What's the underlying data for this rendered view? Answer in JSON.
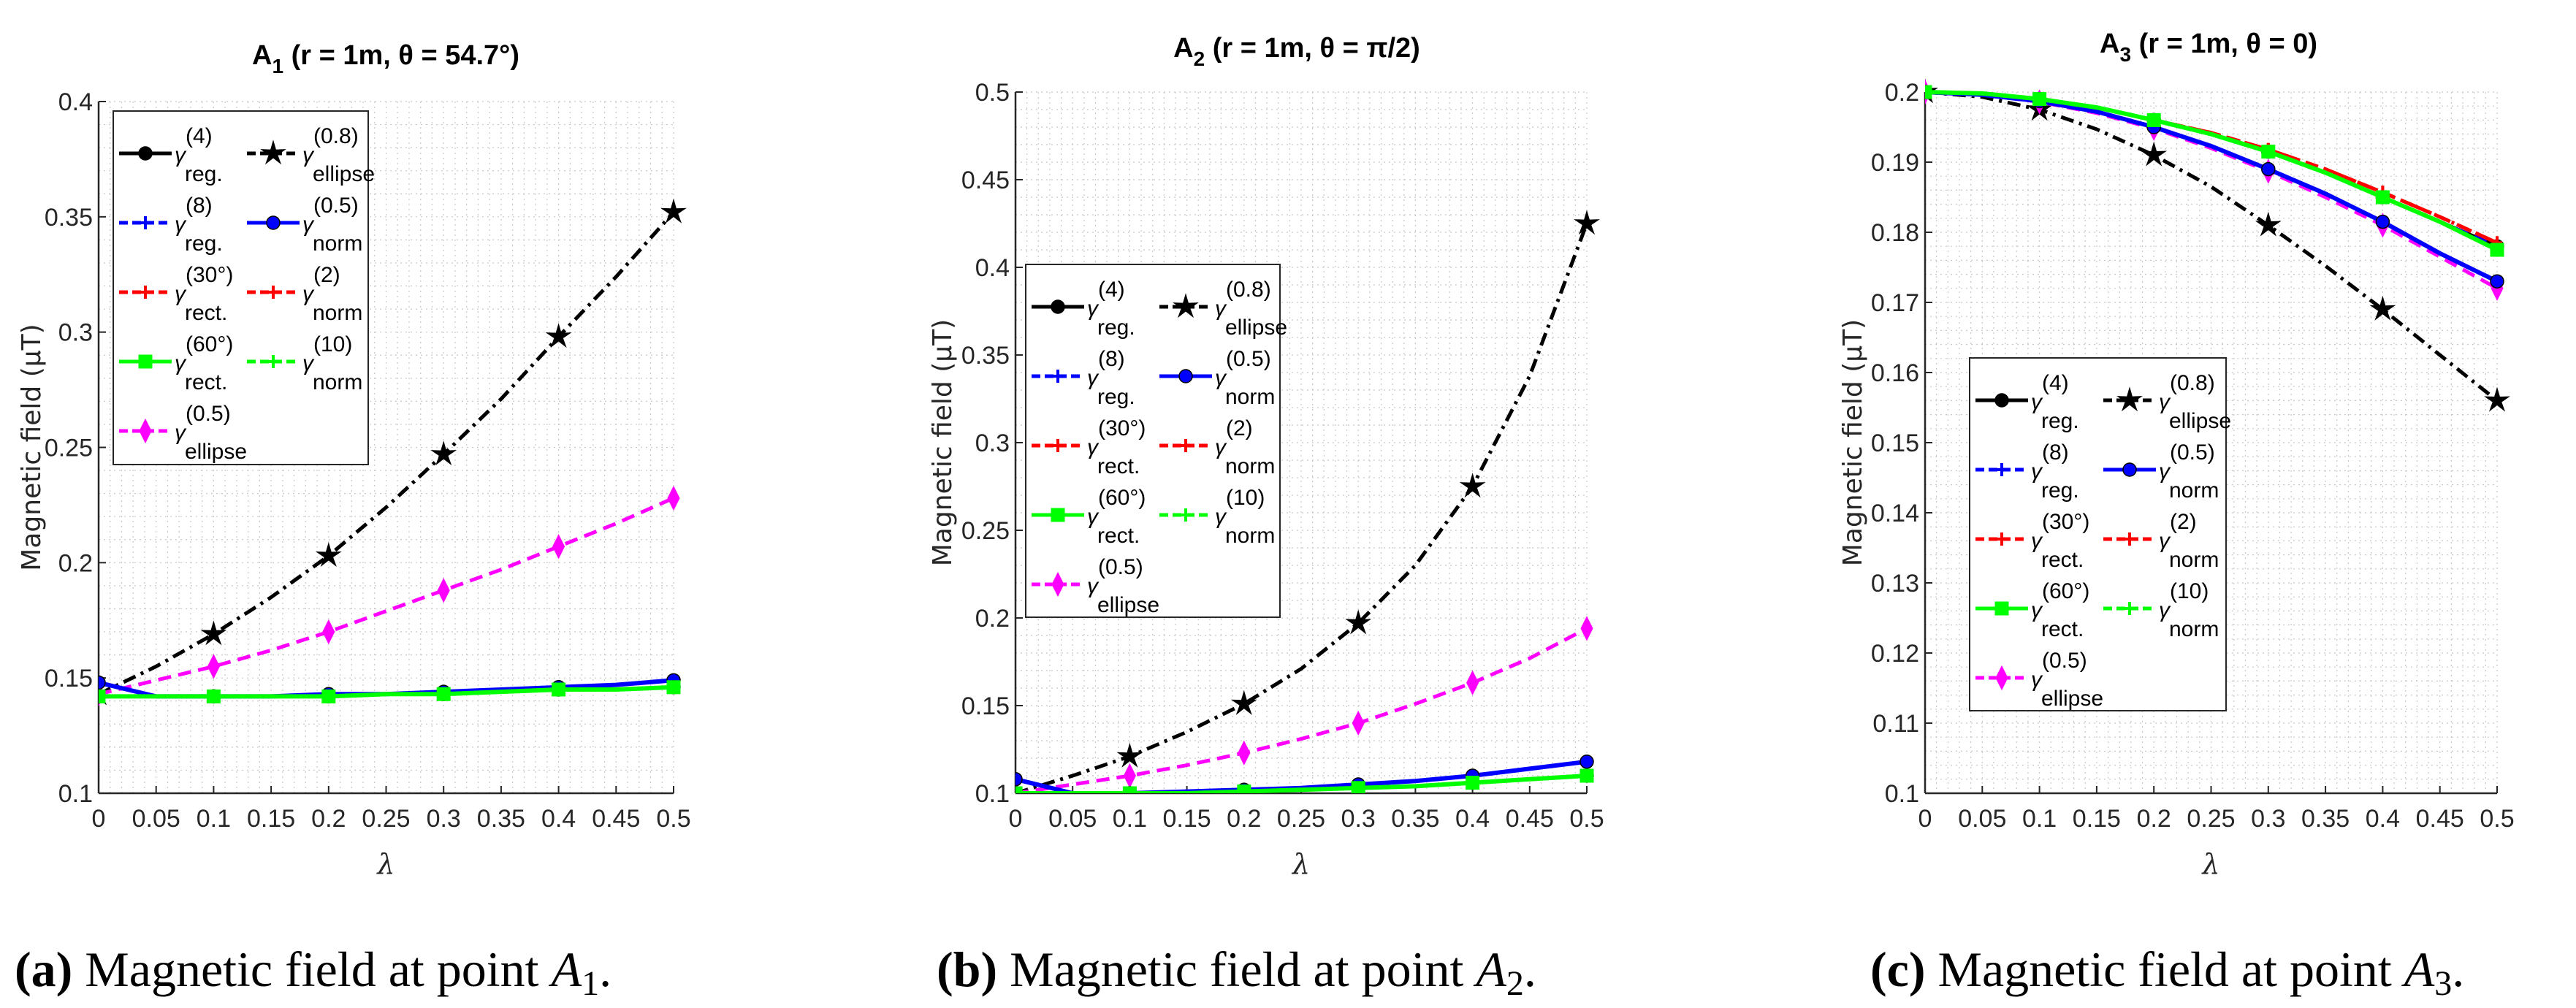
{
  "chart_data": [
    {
      "type": "line",
      "title": {
        "main": "A",
        "sub": "1",
        "rest": " (r = 1m, θ = 54.7°)"
      },
      "xlabel": "λ",
      "ylabel": "Magnetic field (μT)",
      "xlim": [
        0,
        0.5
      ],
      "ylim": [
        0.1,
        0.4
      ],
      "xstep": 0.05,
      "ystep": 0.05,
      "grid": true,
      "legend_position": "top-left",
      "x": [
        0,
        0.05,
        0.1,
        0.15,
        0.2,
        0.25,
        0.3,
        0.35,
        0.4,
        0.45,
        0.5
      ],
      "series": {
        "reg4": [
          0.142,
          0.142,
          0.142,
          0.142,
          0.142,
          0.143,
          0.143,
          0.144,
          0.145,
          0.145,
          0.146
        ],
        "reg8": [
          0.142,
          0.142,
          0.142,
          0.142,
          0.142,
          0.143,
          0.143,
          0.144,
          0.145,
          0.145,
          0.146
        ],
        "rect30": [
          0.142,
          0.142,
          0.142,
          0.142,
          0.142,
          0.143,
          0.143,
          0.144,
          0.145,
          0.145,
          0.146
        ],
        "rect60": [
          0.142,
          0.142,
          0.142,
          0.142,
          0.142,
          0.143,
          0.143,
          0.144,
          0.145,
          0.145,
          0.146
        ],
        "ellipse05": [
          0.143,
          0.149,
          0.155,
          0.162,
          0.17,
          0.179,
          0.188,
          0.197,
          0.207,
          0.217,
          0.228
        ],
        "ellipse08": [
          0.143,
          0.155,
          0.169,
          0.185,
          0.203,
          0.224,
          0.247,
          0.271,
          0.298,
          0.324,
          0.352
        ],
        "norm05": [
          0.148,
          0.142,
          0.142,
          0.142,
          0.143,
          0.143,
          0.144,
          0.145,
          0.146,
          0.147,
          0.149
        ],
        "norm2": [
          0.142,
          0.142,
          0.142,
          0.142,
          0.142,
          0.143,
          0.143,
          0.144,
          0.145,
          0.145,
          0.146
        ],
        "norm10": [
          0.142,
          0.142,
          0.142,
          0.142,
          0.142,
          0.143,
          0.143,
          0.144,
          0.145,
          0.145,
          0.146
        ]
      },
      "caption": {
        "label": "(a)",
        "text": " Magnetic field at point ",
        "var": "A",
        "sub": "1",
        "end": "."
      }
    },
    {
      "type": "line",
      "title": {
        "main": "A",
        "sub": "2",
        "rest": " (r = 1m, θ = π/2)"
      },
      "xlabel": "λ",
      "ylabel": "Magnetic field (μT)",
      "xlim": [
        0,
        0.5
      ],
      "ylim": [
        0.1,
        0.5
      ],
      "xstep": 0.05,
      "ystep": 0.05,
      "grid": true,
      "legend_position": "center-left",
      "x": [
        0,
        0.05,
        0.1,
        0.15,
        0.2,
        0.25,
        0.3,
        0.35,
        0.4,
        0.45,
        0.5
      ],
      "series": {
        "reg4": [
          0.1,
          0.1,
          0.1,
          0.1,
          0.101,
          0.102,
          0.103,
          0.104,
          0.106,
          0.108,
          0.11
        ],
        "reg8": [
          0.1,
          0.1,
          0.1,
          0.1,
          0.101,
          0.102,
          0.103,
          0.104,
          0.106,
          0.108,
          0.11
        ],
        "rect30": [
          0.1,
          0.1,
          0.1,
          0.1,
          0.101,
          0.102,
          0.103,
          0.104,
          0.106,
          0.108,
          0.11
        ],
        "rect60": [
          0.1,
          0.1,
          0.1,
          0.1,
          0.101,
          0.102,
          0.103,
          0.104,
          0.106,
          0.108,
          0.11
        ],
        "ellipse05": [
          0.1,
          0.105,
          0.11,
          0.116,
          0.123,
          0.131,
          0.14,
          0.151,
          0.163,
          0.177,
          0.194
        ],
        "ellipse08": [
          0.1,
          0.11,
          0.121,
          0.135,
          0.151,
          0.171,
          0.197,
          0.23,
          0.275,
          0.338,
          0.425
        ],
        "norm05": [
          0.108,
          0.1,
          0.1,
          0.101,
          0.102,
          0.103,
          0.105,
          0.107,
          0.11,
          0.114,
          0.118
        ],
        "norm2": [
          0.1,
          0.1,
          0.1,
          0.1,
          0.101,
          0.102,
          0.103,
          0.104,
          0.106,
          0.108,
          0.11
        ],
        "norm10": [
          0.1,
          0.1,
          0.1,
          0.1,
          0.101,
          0.102,
          0.103,
          0.104,
          0.106,
          0.108,
          0.11
        ]
      },
      "caption": {
        "label": "(b)",
        "text": " Magnetic field at point ",
        "var": "A",
        "sub": "2",
        "end": "."
      }
    },
    {
      "type": "line",
      "title": {
        "main": "A",
        "sub": "3",
        "rest": " (r = 1m, θ = 0)"
      },
      "xlabel": "λ",
      "ylabel": "Magnetic field (μT)",
      "xlim": [
        0,
        0.5
      ],
      "ylim": [
        0.1,
        0.2
      ],
      "xstep": 0.05,
      "ystep": 0.01,
      "grid": true,
      "legend_position": "bottom-left",
      "x": [
        0,
        0.05,
        0.1,
        0.15,
        0.2,
        0.25,
        0.3,
        0.35,
        0.4,
        0.45,
        0.5
      ],
      "series": {
        "reg4": [
          0.2,
          0.1998,
          0.199,
          0.1978,
          0.196,
          0.194,
          0.1915,
          0.1885,
          0.185,
          0.1815,
          0.178
        ],
        "reg8": [
          0.2,
          0.1998,
          0.199,
          0.1978,
          0.196,
          0.194,
          0.1915,
          0.1885,
          0.185,
          0.1815,
          0.178
        ],
        "rect30": [
          0.2,
          0.1998,
          0.199,
          0.1978,
          0.196,
          0.1942,
          0.1918,
          0.189,
          0.1857,
          0.1822,
          0.1785
        ],
        "rect60": [
          0.2,
          0.1998,
          0.199,
          0.1978,
          0.196,
          0.194,
          0.1915,
          0.1885,
          0.185,
          0.1815,
          0.1775
        ],
        "ellipse05": [
          0.2,
          0.1996,
          0.1986,
          0.197,
          0.1948,
          0.192,
          0.1887,
          0.185,
          0.181,
          0.1765,
          0.172
        ],
        "ellipse08": [
          0.2,
          0.1993,
          0.1975,
          0.1947,
          0.191,
          0.1865,
          0.181,
          0.1752,
          0.169,
          0.1625,
          0.156
        ],
        "norm05": [
          0.2,
          0.1996,
          0.1987,
          0.1972,
          0.195,
          0.1923,
          0.189,
          0.1855,
          0.1815,
          0.177,
          0.173
        ],
        "norm2": [
          0.2,
          0.1998,
          0.199,
          0.1978,
          0.196,
          0.1942,
          0.1918,
          0.189,
          0.1857,
          0.1822,
          0.1785
        ],
        "norm10": [
          0.2,
          0.1998,
          0.199,
          0.1978,
          0.196,
          0.194,
          0.1915,
          0.1885,
          0.185,
          0.1815,
          0.1775
        ]
      },
      "caption": {
        "label": "(c)",
        "text": " Magnetic field at point ",
        "var": "A",
        "sub": "3",
        "end": "."
      }
    }
  ],
  "legend": [
    {
      "key": "reg4",
      "symbol": "γ",
      "sup": "(4)",
      "sub": "reg.",
      "color": "#000000",
      "dash": "solid",
      "marker": "circle"
    },
    {
      "key": "ellipse08",
      "symbol": "γ",
      "sup": "(0.8)",
      "sub": "ellipse",
      "color": "#000000",
      "dash": "dashdot",
      "marker": "star"
    },
    {
      "key": "reg8",
      "symbol": "γ",
      "sup": "(8)",
      "sub": "reg.",
      "color": "#0000ff",
      "dash": "dashed",
      "marker": "plus"
    },
    {
      "key": "norm05",
      "symbol": "γ",
      "sup": "(0.5)",
      "sub": "norm",
      "color": "#0000ff",
      "dash": "solid",
      "marker": "circle"
    },
    {
      "key": "rect30",
      "symbol": "γ",
      "sup": "(30°)",
      "sub": "rect.",
      "color": "#ff0000",
      "dash": "dashdot",
      "marker": "plus"
    },
    {
      "key": "norm2",
      "symbol": "γ",
      "sup": "(2)",
      "sub": "norm",
      "color": "#ff0000",
      "dash": "dashed",
      "marker": "plus"
    },
    {
      "key": "rect60",
      "symbol": "γ",
      "sup": "(60°)",
      "sub": "rect.",
      "color": "#00ff00",
      "dash": "solid",
      "marker": "square"
    },
    {
      "key": "norm10",
      "symbol": "γ",
      "sup": "(10)",
      "sub": "norm",
      "color": "#00ff00",
      "dash": "dashdot",
      "marker": "plus"
    },
    {
      "key": "ellipse05",
      "symbol": "γ",
      "sup": "(0.5)",
      "sub": "ellipse",
      "color": "#ff00ff",
      "dash": "dashed",
      "marker": "diamond"
    }
  ]
}
